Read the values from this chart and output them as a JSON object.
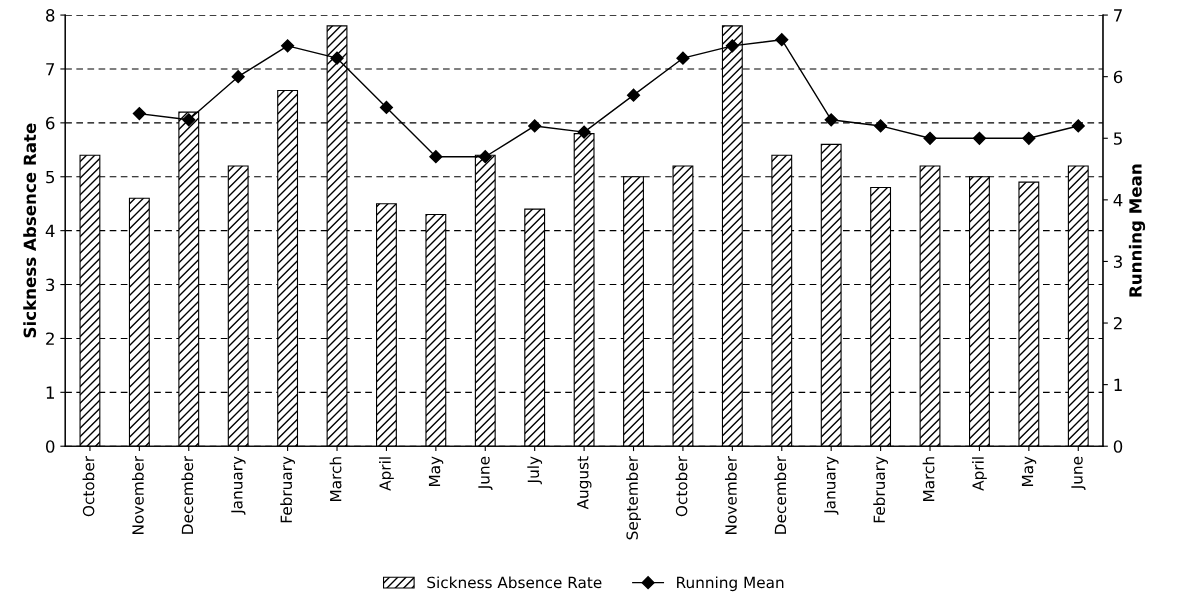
{
  "chart_data": {
    "type": "bar",
    "ylabel": "Sickness Absence Rate",
    "y2label": "Running Mean",
    "categories": [
      "October",
      "November",
      "December",
      "January",
      "February",
      "March",
      "April",
      "May",
      "June",
      "July",
      "August",
      "September",
      "October",
      "November",
      "December",
      "January",
      "February",
      "March",
      "April",
      "May",
      "June"
    ],
    "series": [
      {
        "name": "Sickness Absence Rate",
        "color": "#000000",
        "values": [
          5.4,
          4.6,
          6.2,
          5.2,
          6.6,
          7.8,
          4.5,
          4.3,
          5.4,
          4.4,
          5.8,
          5.0,
          5.2,
          7.8,
          5.4,
          5.6,
          4.8,
          5.2,
          5.0,
          4.9,
          5.2
        ]
      },
      {
        "name": "Running Mean",
        "type": "line",
        "axis": "y2",
        "color": "#000000",
        "marker": "diamond",
        "values": [
          null,
          5.4,
          5.3,
          6.0,
          6.5,
          6.3,
          5.5,
          4.7,
          4.7,
          5.2,
          5.1,
          5.7,
          6.3,
          6.5,
          6.6,
          5.3,
          5.2,
          5.0,
          5.0,
          5.0,
          5.2
        ]
      }
    ],
    "ylim": [
      0,
      8
    ],
    "yticks": [
      0,
      1,
      2,
      3,
      4,
      5,
      6,
      7,
      8
    ],
    "y2lim": [
      0,
      7
    ],
    "y2ticks": [
      0,
      1,
      2,
      3,
      4,
      5,
      6,
      7
    ],
    "grid": "y",
    "legend": "bottom"
  }
}
